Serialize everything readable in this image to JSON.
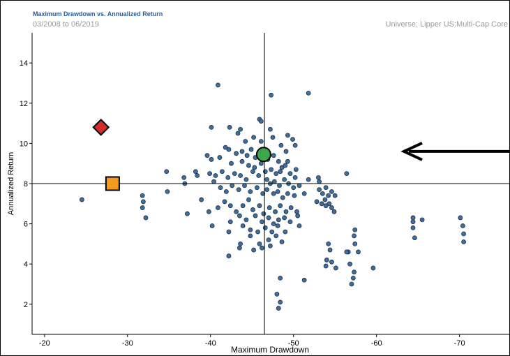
{
  "header": {
    "title": "Maximum Drawdown vs. Annualized Return",
    "date_range": "03/2008 to 06/2019",
    "universe": "Universe: Lipper US:Multi-Cap Core"
  },
  "colors": {
    "universe_points": "#3f6d9c",
    "green_circle": "#3aa84a",
    "red_diamond": "#d62b2b",
    "orange_square": "#f39a1f",
    "crosshair": "#000000"
  },
  "chart_data": {
    "type": "scatter",
    "xlabel": "Maximum Drawdown",
    "ylabel": "Annualized Return",
    "x_reversed": true,
    "xlim": [
      -18.5,
      -76
    ],
    "ylim": [
      0.5,
      15.5
    ],
    "x_ticks": [
      -20,
      -30,
      -40,
      -50,
      -60,
      -70
    ],
    "y_ticks": [
      2,
      4,
      6,
      8,
      10,
      12,
      14
    ],
    "grid": false,
    "crosshair": {
      "x": -46.5,
      "y": 8.0
    },
    "arrow": {
      "marker": "arrow",
      "direction": "left",
      "points_to_y": 9.6
    },
    "highlights": [
      {
        "marker": "diamond",
        "color": "#d62b2b",
        "x": -26.8,
        "y": 10.8
      },
      {
        "marker": "square",
        "color": "#f39a1f",
        "x": -28.2,
        "y": 8.0
      },
      {
        "marker": "circle",
        "color": "#3aa84a",
        "x": -46.4,
        "y": 9.45
      }
    ],
    "series": [
      {
        "marker": "circle",
        "points": [
          [
            -24.5,
            7.2
          ],
          [
            -31.8,
            7.4
          ],
          [
            -31.9,
            7.1
          ],
          [
            -31.8,
            6.8
          ],
          [
            -32.2,
            6.3
          ],
          [
            -34.7,
            8.6
          ],
          [
            -34.8,
            7.6
          ],
          [
            -37.2,
            6.5
          ],
          [
            -36.8,
            8.3
          ],
          [
            -36.9,
            8.0
          ],
          [
            -38.2,
            8.6
          ],
          [
            -38.4,
            8.4
          ],
          [
            -40.9,
            12.9
          ],
          [
            -51.8,
            12.5
          ],
          [
            -47.3,
            12.4
          ],
          [
            -45.9,
            11.2
          ],
          [
            -46.1,
            11.1
          ],
          [
            -40.1,
            10.8
          ],
          [
            -42.3,
            10.8
          ],
          [
            -43.6,
            10.7
          ],
          [
            -47.2,
            10.7
          ],
          [
            -43.3,
            10.5
          ],
          [
            -44.2,
            10.1
          ],
          [
            -45.2,
            10.3
          ],
          [
            -46.1,
            10.1
          ],
          [
            -47.5,
            10.3
          ],
          [
            -48.5,
            9.9
          ],
          [
            -49.3,
            10.4
          ],
          [
            -49.9,
            10.2
          ],
          [
            -50.2,
            9.9
          ],
          [
            -49.1,
            9.6
          ],
          [
            -50.3,
            8.7
          ],
          [
            -39.6,
            9.4
          ],
          [
            -40.1,
            9.2
          ],
          [
            -41.1,
            9.3
          ],
          [
            -41.8,
            9.8
          ],
          [
            -42.2,
            9.7
          ],
          [
            -43.1,
            9.5
          ],
          [
            -43.8,
            9.6
          ],
          [
            -44.4,
            9.4
          ],
          [
            -44.9,
            9.7
          ],
          [
            -45.4,
            9.3
          ],
          [
            -46.1,
            9.0
          ],
          [
            -46.9,
            9.2
          ],
          [
            -47.6,
            9.4
          ],
          [
            -48.2,
            9.1
          ],
          [
            -48.6,
            8.8
          ],
          [
            -49.3,
            9.1
          ],
          [
            -42.5,
            9.0
          ],
          [
            -43.8,
            9.1
          ],
          [
            -44.6,
            8.9
          ],
          [
            -45.3,
            8.8
          ],
          [
            -46.6,
            8.6
          ],
          [
            -47.3,
            8.7
          ],
          [
            -47.9,
            8.5
          ],
          [
            -48.4,
            8.6
          ],
          [
            -49.0,
            8.9
          ],
          [
            -49.6,
            8.5
          ],
          [
            -50.2,
            8.3
          ],
          [
            -51.8,
            8.2
          ],
          [
            -53.0,
            8.3
          ],
          [
            -53.1,
            8.1
          ],
          [
            -56.4,
            8.5
          ],
          [
            -39.9,
            8.5
          ],
          [
            -40.6,
            8.4
          ],
          [
            -41.4,
            8.6
          ],
          [
            -42.1,
            8.3
          ],
          [
            -42.9,
            8.5
          ],
          [
            -43.6,
            8.4
          ],
          [
            -44.3,
            8.2
          ],
          [
            -45.1,
            8.6
          ],
          [
            -45.8,
            8.4
          ],
          [
            -46.8,
            8.2
          ],
          [
            -47.2,
            8.0
          ],
          [
            -47.7,
            8.1
          ],
          [
            -48.3,
            7.9
          ],
          [
            -48.9,
            8.2
          ],
          [
            -49.4,
            8.0
          ],
          [
            -50.0,
            7.8
          ],
          [
            -50.7,
            7.9
          ],
          [
            -40.4,
            8.1
          ],
          [
            -41.2,
            7.8
          ],
          [
            -41.9,
            7.6
          ],
          [
            -42.6,
            7.9
          ],
          [
            -43.4,
            7.7
          ],
          [
            -44.1,
            7.9
          ],
          [
            -44.8,
            7.6
          ],
          [
            -45.6,
            7.8
          ],
          [
            -46.3,
            7.5
          ],
          [
            -46.8,
            7.7
          ],
          [
            -47.6,
            7.5
          ],
          [
            -48.1,
            7.6
          ],
          [
            -48.7,
            7.3
          ],
          [
            -49.3,
            7.5
          ],
          [
            -50.1,
            7.4
          ],
          [
            -51.3,
            7.5
          ],
          [
            -53.1,
            7.7
          ],
          [
            -53.5,
            7.5
          ],
          [
            -53.9,
            7.8
          ],
          [
            -54.2,
            7.4
          ],
          [
            -54.6,
            7.6
          ],
          [
            -55.0,
            7.4
          ],
          [
            -53.8,
            7.2
          ],
          [
            -54.3,
            7.0
          ],
          [
            -53.4,
            7.0
          ],
          [
            -52.8,
            7.1
          ],
          [
            -54.6,
            6.8
          ],
          [
            -54.9,
            6.6
          ],
          [
            -53.9,
            6.9
          ],
          [
            -38.9,
            7.2
          ],
          [
            -39.8,
            6.6
          ],
          [
            -40.9,
            6.8
          ],
          [
            -41.7,
            7.1
          ],
          [
            -42.4,
            6.9
          ],
          [
            -43.1,
            6.6
          ],
          [
            -43.9,
            6.9
          ],
          [
            -44.6,
            7.2
          ],
          [
            -45.1,
            6.7
          ],
          [
            -45.9,
            6.9
          ],
          [
            -46.4,
            6.5
          ],
          [
            -47.1,
            6.8
          ],
          [
            -47.8,
            6.6
          ],
          [
            -48.4,
            6.9
          ],
          [
            -49.1,
            6.6
          ],
          [
            -49.7,
            6.8
          ],
          [
            -50.4,
            6.6
          ],
          [
            -43.5,
            6.4
          ],
          [
            -44.3,
            6.2
          ],
          [
            -45.4,
            6.4
          ],
          [
            -46.2,
            6.1
          ],
          [
            -47.0,
            6.3
          ],
          [
            -47.6,
            6.0
          ],
          [
            -48.2,
            6.2
          ],
          [
            -48.9,
            6.3
          ],
          [
            -49.6,
            6.1
          ],
          [
            -50.5,
            6.4
          ],
          [
            -42.4,
            6.1
          ],
          [
            -40.2,
            5.9
          ],
          [
            -43.9,
            5.9
          ],
          [
            -44.8,
            5.7
          ],
          [
            -45.7,
            5.6
          ],
          [
            -46.6,
            5.8
          ],
          [
            -47.4,
            5.6
          ],
          [
            -48.1,
            5.9
          ],
          [
            -49.0,
            5.6
          ],
          [
            -50.7,
            5.9
          ],
          [
            -42.2,
            5.6
          ],
          [
            -43.6,
            5.0
          ],
          [
            -44.8,
            5.4
          ],
          [
            -45.9,
            5.0
          ],
          [
            -47.0,
            5.2
          ],
          [
            -47.9,
            5.4
          ],
          [
            -48.6,
            5.1
          ],
          [
            -43.5,
            4.8
          ],
          [
            -45.2,
            4.7
          ],
          [
            -46.2,
            4.8
          ],
          [
            -47.2,
            4.9
          ],
          [
            -42.2,
            4.4
          ],
          [
            -48.4,
            3.3
          ],
          [
            -51.3,
            3.2
          ],
          [
            -48.0,
            2.5
          ],
          [
            -48.4,
            2.1
          ],
          [
            -48.2,
            1.8
          ],
          [
            -54.2,
            5.0
          ],
          [
            -54.4,
            4.7
          ],
          [
            -54.0,
            4.2
          ],
          [
            -54.6,
            4.1
          ],
          [
            -53.9,
            3.9
          ],
          [
            -55.1,
            3.8
          ],
          [
            -56.6,
            4.6
          ],
          [
            -56.8,
            4.0
          ],
          [
            -57.4,
            5.7
          ],
          [
            -57.3,
            5.4
          ],
          [
            -57.4,
            5.0
          ],
          [
            -57.8,
            4.6
          ],
          [
            -56.4,
            4.6
          ],
          [
            -57.3,
            3.6
          ],
          [
            -57.2,
            3.3
          ],
          [
            -57.0,
            3.0
          ],
          [
            -59.6,
            3.8
          ],
          [
            -64.4,
            6.3
          ],
          [
            -64.4,
            6.1
          ],
          [
            -64.4,
            5.8
          ],
          [
            -65.5,
            6.2
          ],
          [
            -64.6,
            5.3
          ],
          [
            -70.1,
            6.3
          ],
          [
            -70.4,
            5.9
          ],
          [
            -70.5,
            5.5
          ],
          [
            -70.5,
            5.1
          ]
        ]
      }
    ]
  }
}
